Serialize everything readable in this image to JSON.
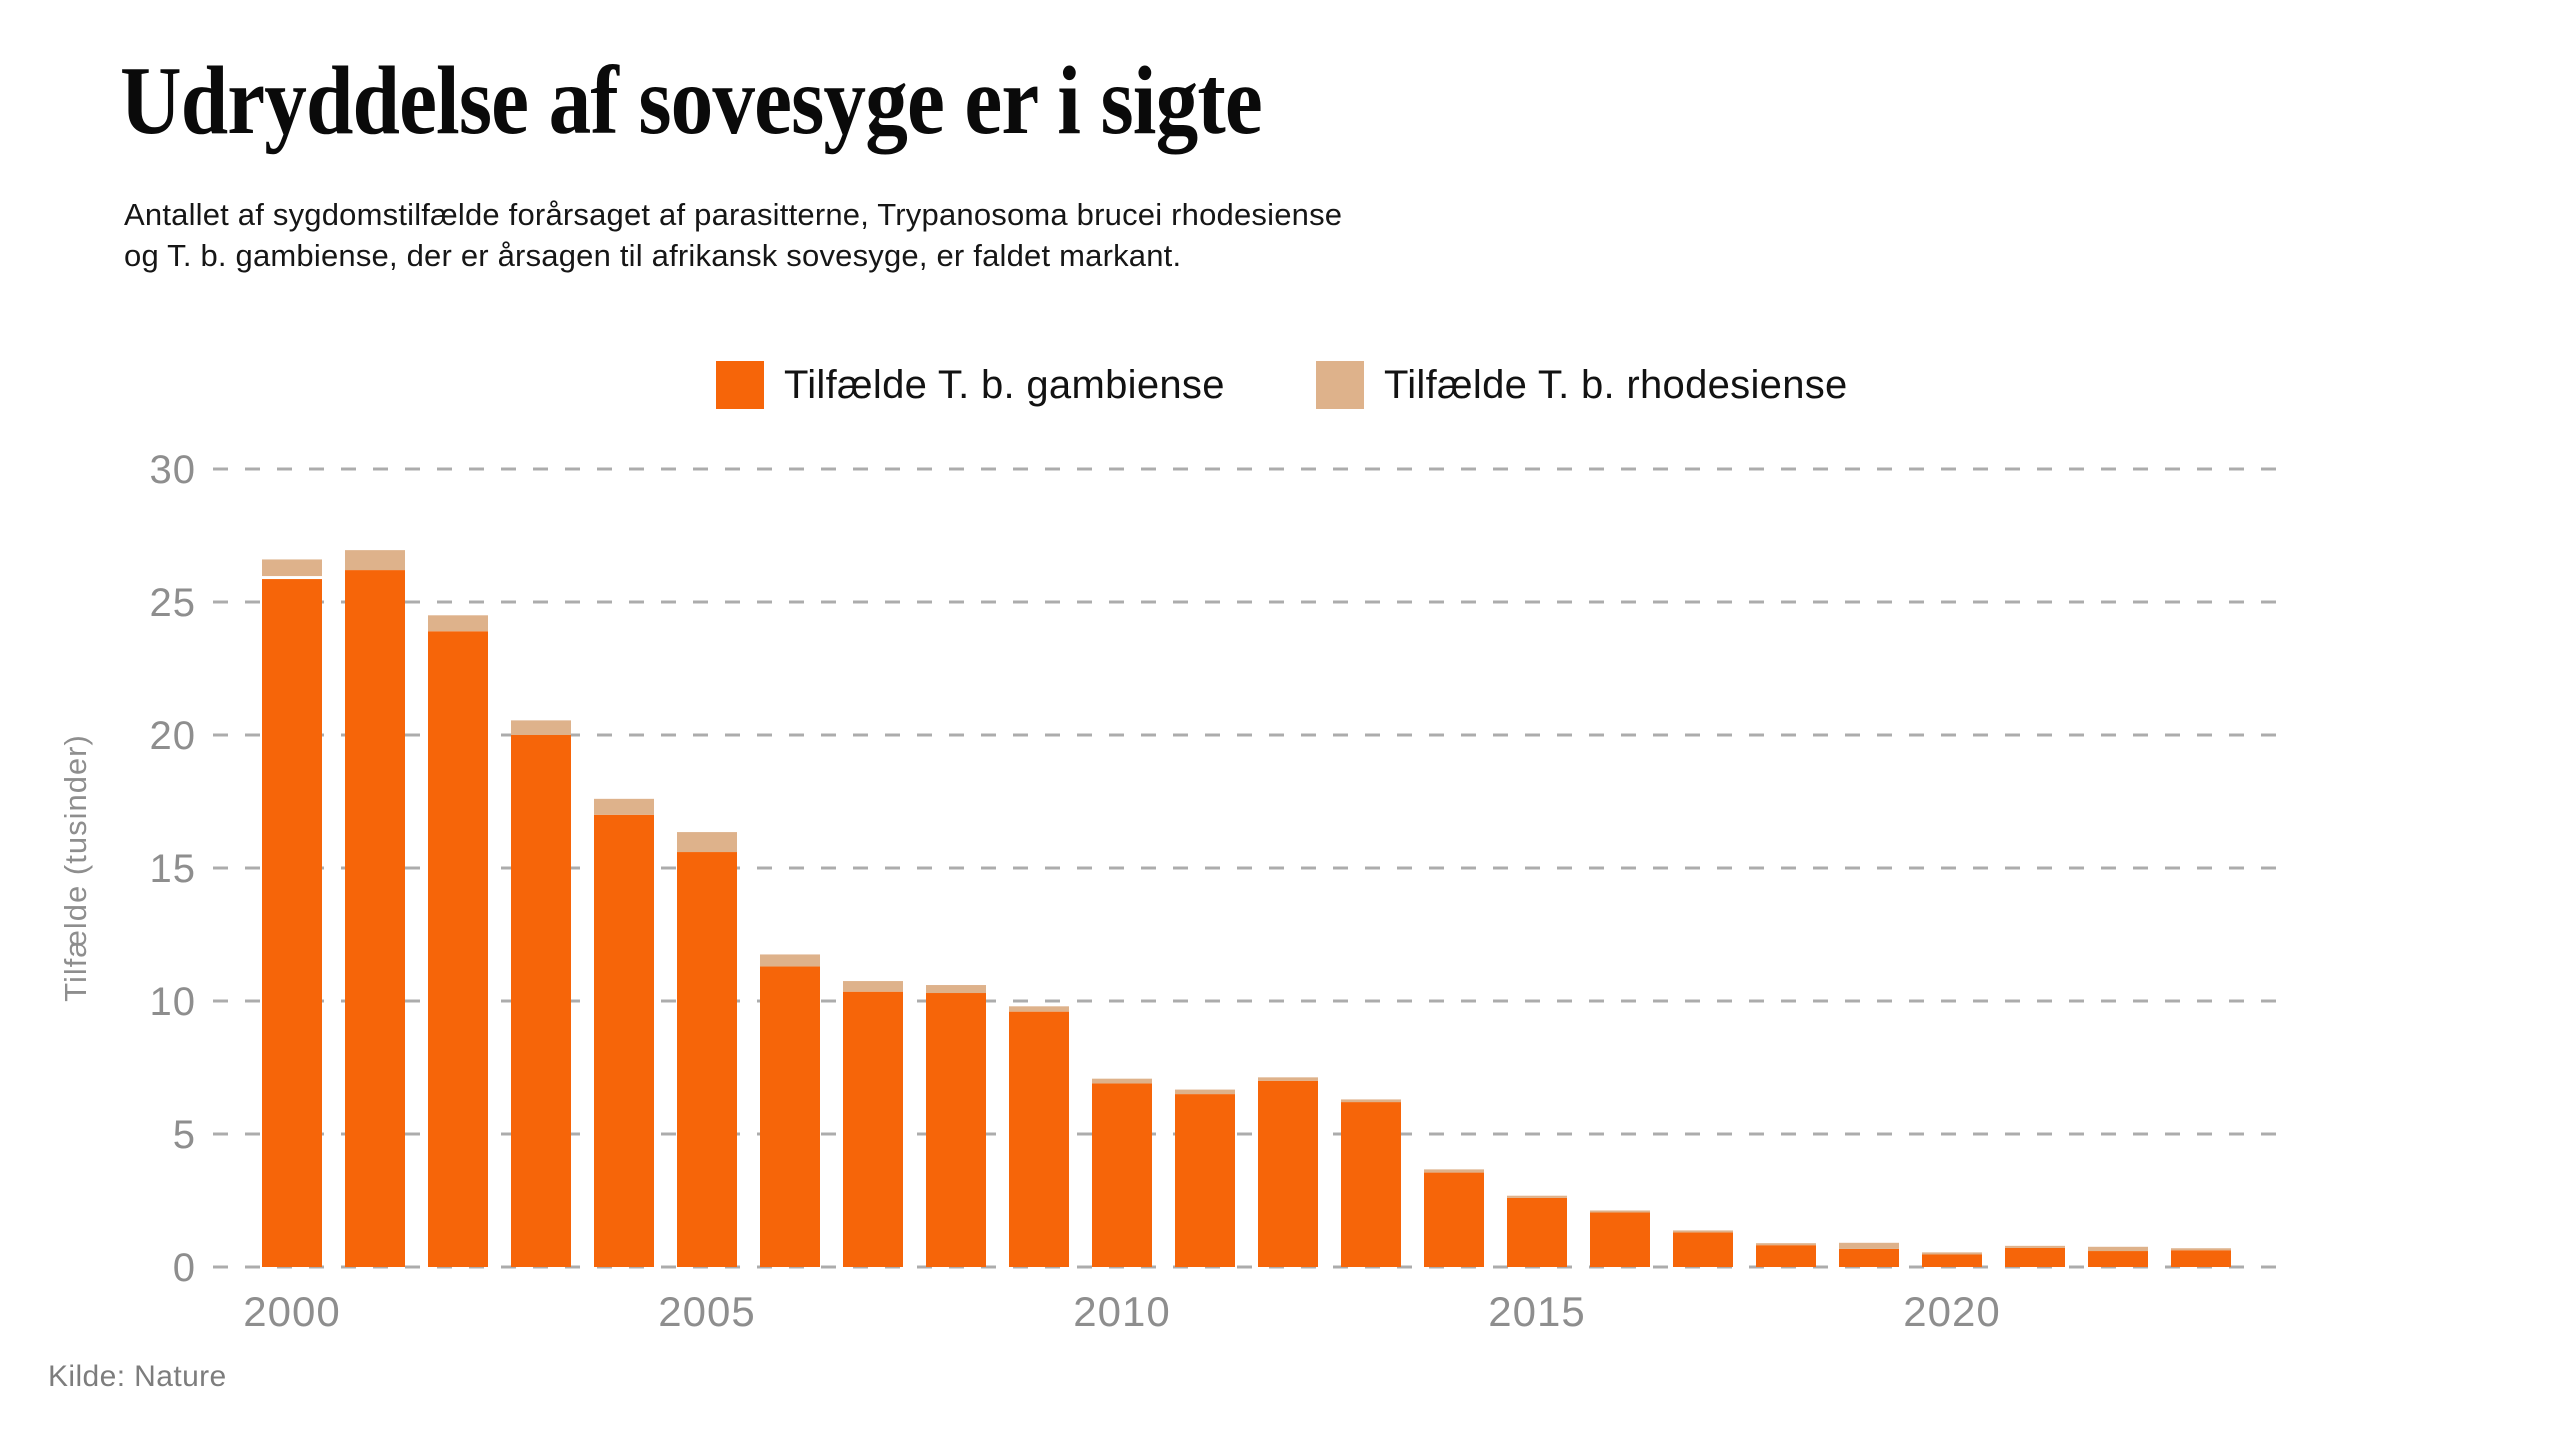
{
  "title": "Udryddelse af sovesyge er i sigte",
  "subtitle": {
    "line1": "Antallet af sygdomstilfælde forårsaget af parasitterne, Trypanosoma brucei rhodesiense",
    "line2": "og T. b. gambiense, der er årsagen til afrikansk sovesyge, er faldet markant."
  },
  "source": "Kilde: Nature",
  "colors": {
    "gambiense": "#F66509",
    "rhodesiense": "#DEB28B",
    "grid": "#ACACAC",
    "axis_text": "#8E8E8E",
    "background": "#FFFFFF"
  },
  "chart_data": {
    "type": "bar",
    "stacked": true,
    "title": "",
    "xlabel": "",
    "ylabel": "Tilfælde (tusinder)",
    "ylim": [
      0,
      30
    ],
    "yticks": [
      0,
      5,
      10,
      15,
      20,
      25,
      30
    ],
    "xticks": [
      2000,
      2005,
      2010,
      2015,
      2020
    ],
    "grid": "horizontal-dashed",
    "legend_position": "top",
    "white_divider_years": [
      2000
    ],
    "categories": [
      2000,
      2001,
      2002,
      2003,
      2004,
      2005,
      2006,
      2007,
      2008,
      2009,
      2010,
      2011,
      2012,
      2013,
      2014,
      2015,
      2016,
      2017,
      2018,
      2019,
      2020,
      2021,
      2022,
      2023
    ],
    "series": [
      {
        "name": "Tilfælde T. b. gambiense",
        "color": "#F66509",
        "values": [
          25.9,
          26.2,
          23.9,
          20.0,
          17.0,
          15.6,
          11.3,
          10.35,
          10.3,
          9.6,
          6.9,
          6.5,
          7.0,
          6.2,
          3.55,
          2.6,
          2.05,
          1.3,
          0.82,
          0.68,
          0.47,
          0.72,
          0.6,
          0.63
        ]
      },
      {
        "name": "Tilfælde T. b. rhodesiense",
        "color": "#DEB28B",
        "values": [
          0.7,
          0.75,
          0.6,
          0.55,
          0.6,
          0.75,
          0.45,
          0.4,
          0.3,
          0.2,
          0.18,
          0.17,
          0.13,
          0.1,
          0.12,
          0.08,
          0.07,
          0.06,
          0.04,
          0.23,
          0.08,
          0.05,
          0.16,
          0.04
        ]
      }
    ]
  }
}
